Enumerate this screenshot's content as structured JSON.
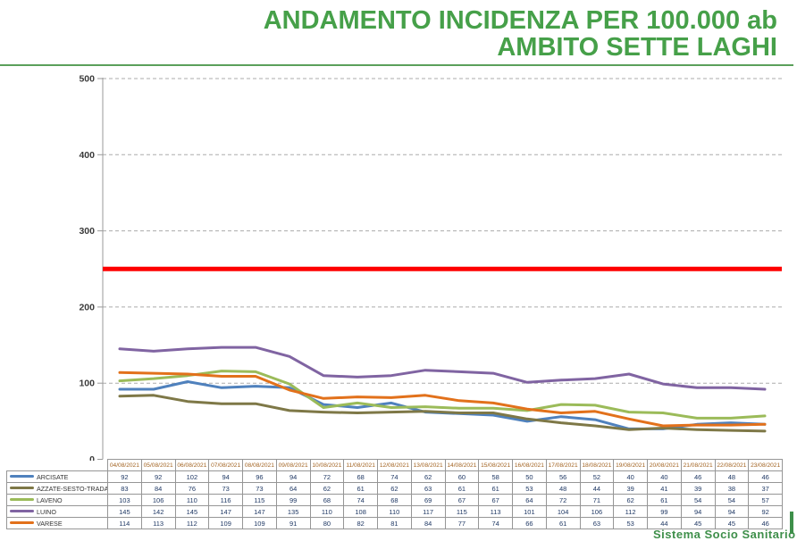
{
  "title": {
    "line1": "ANDAMENTO INCIDENZA PER 100.000 ab",
    "line2": "AMBITO SETTE LAGHI"
  },
  "footer": {
    "text": "Sistema Socio Sanitario"
  },
  "colors": {
    "title-green": "#46A049",
    "rule-green": "#5BA05B",
    "footer-green": "#3E8F4A",
    "threshold-red": "#FE0000",
    "grid": "#ABABAB",
    "axis": "#9A9A9A",
    "axis-label": "#3A3A3A",
    "table-border": "#969696",
    "date-text": "#A26321",
    "value-text": "#1F3864"
  },
  "chart_data": {
    "type": "line",
    "title": "ANDAMENTO INCIDENZA PER 100.000 ab AMBITO SETTE LAGHI",
    "xlabel": "",
    "ylabel": "",
    "ylim": [
      0,
      500
    ],
    "yticks": [
      0,
      100,
      200,
      300,
      400,
      500
    ],
    "grid": "horizontal-dashed",
    "legend_position": "table-left",
    "threshold": 250,
    "x": [
      "04/08/2021",
      "05/08/2021",
      "06/08/2021",
      "07/08/2021",
      "08/08/2021",
      "09/08/2021",
      "10/08/2021",
      "11/08/2021",
      "12/08/2021",
      "13/08/2021",
      "14/08/2021",
      "15/08/2021",
      "16/08/2021",
      "17/08/2021",
      "18/08/2021",
      "19/08/2021",
      "20/08/2021",
      "21/08/2021",
      "22/08/2021",
      "23/08/2021"
    ],
    "series": [
      {
        "name": "ARCISATE",
        "color": "#4F81BD",
        "values": [
          92,
          92,
          102,
          94,
          96,
          94,
          72,
          68,
          74,
          62,
          60,
          58,
          50,
          56,
          52,
          40,
          40,
          46,
          48,
          46
        ]
      },
      {
        "name": "AZZATE-SESTO-TRADATE",
        "color": "#7E7847",
        "values": [
          83,
          84,
          76,
          73,
          73,
          64,
          62,
          61,
          62,
          63,
          61,
          61,
          53,
          48,
          44,
          39,
          41,
          39,
          38,
          37
        ]
      },
      {
        "name": "LAVENO",
        "color": "#9BBB59",
        "values": [
          103,
          106,
          110,
          116,
          115,
          99,
          68,
          74,
          68,
          69,
          67,
          67,
          64,
          72,
          71,
          62,
          61,
          54,
          54,
          57
        ]
      },
      {
        "name": "LUINO",
        "color": "#8064A2",
        "values": [
          145,
          142,
          145,
          147,
          147,
          135,
          110,
          108,
          110,
          117,
          115,
          113,
          101,
          104,
          106,
          112,
          99,
          94,
          94,
          92
        ]
      },
      {
        "name": "VARESE",
        "color": "#E2711B",
        "values": [
          114,
          113,
          112,
          109,
          109,
          91,
          80,
          82,
          81,
          84,
          77,
          74,
          66,
          61,
          63,
          53,
          44,
          45,
          45,
          46
        ]
      }
    ]
  }
}
